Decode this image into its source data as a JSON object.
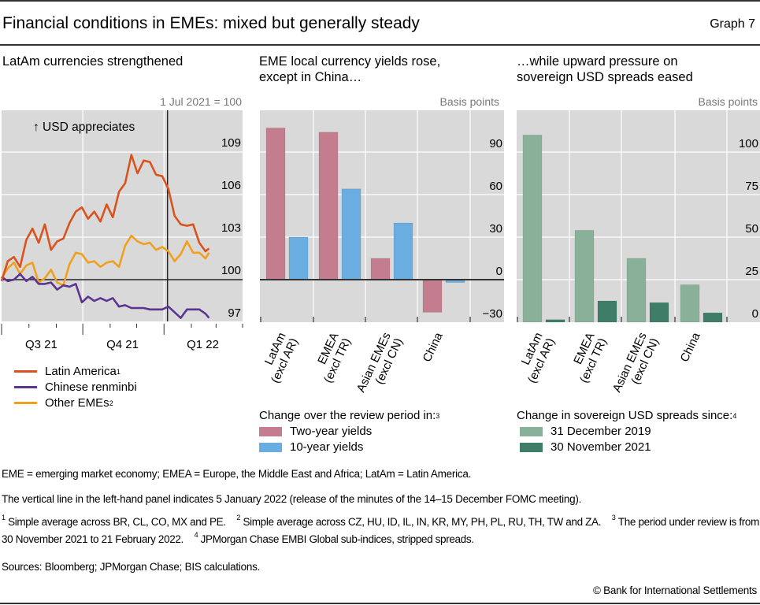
{
  "header": {
    "title": "Financial conditions in EMEs: mixed but generally steady",
    "graph_number": "Graph 7"
  },
  "panels": {
    "left": {
      "title": "LatAm currencies strengthened",
      "unit": "1 Jul 2021 = 100",
      "annotation": "↑ USD appreciates",
      "legend": [
        {
          "label": "Latin America",
          "sup": "1"
        },
        {
          "label": "Chinese renminbi",
          "sup": ""
        },
        {
          "label": "Other EMEs",
          "sup": "2"
        }
      ]
    },
    "middle": {
      "title_line1": "EME local currency yields rose,",
      "title_line2": "except in China…",
      "unit": "Basis points",
      "legend_title": "Change over the review period in:",
      "legend_title_sup": "3",
      "legend": [
        {
          "label": "Two-year yields"
        },
        {
          "label": "10-year yields"
        }
      ]
    },
    "right": {
      "title_line1": "…while upward pressure on",
      "title_line2": "sovereign USD spreads eased",
      "unit": "Basis points",
      "legend_title": "Change in sovereign USD spreads since:",
      "legend_title_sup": "4",
      "legend": [
        {
          "label": "31 December 2019"
        },
        {
          "label": "30 November 2021"
        }
      ]
    }
  },
  "notes": {
    "abbrev": "EME = emerging market economy; EMEA = Europe, the Middle East and Africa; LatAm = Latin America.",
    "vertical_line": "The vertical line in the left-hand panel indicates 5 January 2022 (release of the minutes of the 14–15 December FOMC meeting).",
    "fn1_num": "1",
    "fn1": "Simple average across BR, CL, CO, MX and PE.",
    "fn2_num": "2",
    "fn2": "Simple average across CZ, HU, ID, IL, IN, KR, MY, PH, PL, RU, TH, TW and ZA.",
    "fn3_num": "3",
    "fn3": "The period under review is from 30 November 2021 to 21 February 2022.",
    "fn4_num": "4",
    "fn4": "JPMorgan Chase EMBI Global sub-indices, stripped spreads.",
    "sources": "Sources: Bloomberg; JPMorgan Chase; BIS calculations.",
    "copyright": "© Bank for International Settlements"
  },
  "colors": {
    "latam": "#d9531e",
    "renminbi": "#5b3590",
    "other_emes": "#f0a01e",
    "two_year": "#c47d8e",
    "ten_year": "#6aade0",
    "dec2019": "#89b199",
    "nov2021": "#3f7d69",
    "plot_bg": "#d9d9d9",
    "grid": "#ffffff",
    "axis": "#333333"
  },
  "chart_data": [
    {
      "type": "line",
      "title": "LatAm currencies strengthened",
      "ylabel": "1 Jul 2021 = 100",
      "ylim": [
        97,
        111
      ],
      "yticks": [
        97,
        100,
        103,
        106,
        109
      ],
      "xlim": [
        "2021-07-01",
        "2022-03-31"
      ],
      "xtick_labels": [
        "Q3 21",
        "Q4 21",
        "Q1 22"
      ],
      "grid": true,
      "vline_date": "2022-01-05",
      "x": [
        "2021-07-01",
        "2021-07-08",
        "2021-07-15",
        "2021-07-22",
        "2021-07-29",
        "2021-08-05",
        "2021-08-12",
        "2021-08-19",
        "2021-08-26",
        "2021-09-02",
        "2021-09-09",
        "2021-09-16",
        "2021-09-23",
        "2021-09-30",
        "2021-10-07",
        "2021-10-14",
        "2021-10-21",
        "2021-10-28",
        "2021-11-04",
        "2021-11-11",
        "2021-11-18",
        "2021-11-25",
        "2021-12-02",
        "2021-12-09",
        "2021-12-16",
        "2021-12-23",
        "2021-12-30",
        "2022-01-06",
        "2022-01-13",
        "2022-01-20",
        "2022-01-27",
        "2022-02-03",
        "2022-02-10",
        "2022-02-17",
        "2022-02-21"
      ],
      "series": [
        {
          "name": "Latin America",
          "values": [
            99.9,
            101.3,
            101.6,
            100.9,
            102.8,
            103.6,
            102.6,
            103.9,
            102.1,
            102.7,
            102.9,
            104.0,
            104.8,
            105.1,
            104.3,
            104.8,
            104.1,
            105.3,
            104.4,
            106.2,
            106.8,
            108.8,
            107.5,
            108.4,
            108.3,
            107.4,
            107.3,
            106.4,
            104.5,
            103.9,
            103.8,
            103.9,
            102.6,
            102.0,
            102.2
          ]
        },
        {
          "name": "Chinese renminbi",
          "values": [
            100.2,
            99.9,
            100.0,
            100.4,
            99.9,
            100.2,
            99.7,
            99.7,
            99.8,
            99.3,
            99.6,
            99.5,
            99.7,
            98.4,
            98.8,
            98.5,
            98.7,
            98.5,
            98.7,
            98.1,
            98.2,
            98.0,
            98.0,
            98.0,
            97.9,
            97.9,
            97.9,
            98.1,
            97.7,
            97.3,
            97.9,
            97.9,
            97.9,
            97.6,
            97.3
          ]
        },
        {
          "name": "Other EMEs",
          "values": [
            100.1,
            100.8,
            101.2,
            100.4,
            101.0,
            101.2,
            99.8,
            100.1,
            100.7,
            99.8,
            99.6,
            101.1,
            101.9,
            101.8,
            101.2,
            101.3,
            100.9,
            101.2,
            101.3,
            100.9,
            102.4,
            103.1,
            102.7,
            102.5,
            102.6,
            102.1,
            102.3,
            102.0,
            101.3,
            101.8,
            102.7,
            101.9,
            101.9,
            101.5,
            101.9
          ]
        }
      ]
    },
    {
      "type": "bar",
      "title": "EME local currency yields rose, except in China…",
      "ylabel": "Basis points",
      "categories": [
        "LatAm (excl AR)",
        "EMEA (excl TR)",
        "Asian EMEs (excl CN)",
        "China"
      ],
      "ylim": [
        -30,
        120
      ],
      "yticks": [
        -30,
        0,
        30,
        60,
        90
      ],
      "grid": true,
      "legend": "bottom",
      "series": [
        {
          "name": "Two-year yields",
          "values": [
            107,
            104,
            15,
            -23
          ]
        },
        {
          "name": "10-year yields",
          "values": [
            30,
            64,
            40,
            -2
          ]
        }
      ]
    },
    {
      "type": "bar",
      "title": "…while upward pressure on sovereign USD spreads eased",
      "ylabel": "Basis points",
      "categories": [
        "LatAm (excl AR)",
        "EMEA (excl TR)",
        "Asian EMEs (excl CN)",
        "China"
      ],
      "ylim": [
        0,
        124
      ],
      "yticks": [
        0,
        25,
        50,
        75,
        100
      ],
      "grid": true,
      "legend": "bottom",
      "series": [
        {
          "name": "31 December 2019",
          "values": [
            110,
            54,
            37.5,
            22
          ]
        },
        {
          "name": "30 November 2021",
          "values": [
            1.5,
            12.5,
            11.5,
            5.5
          ]
        }
      ]
    }
  ]
}
